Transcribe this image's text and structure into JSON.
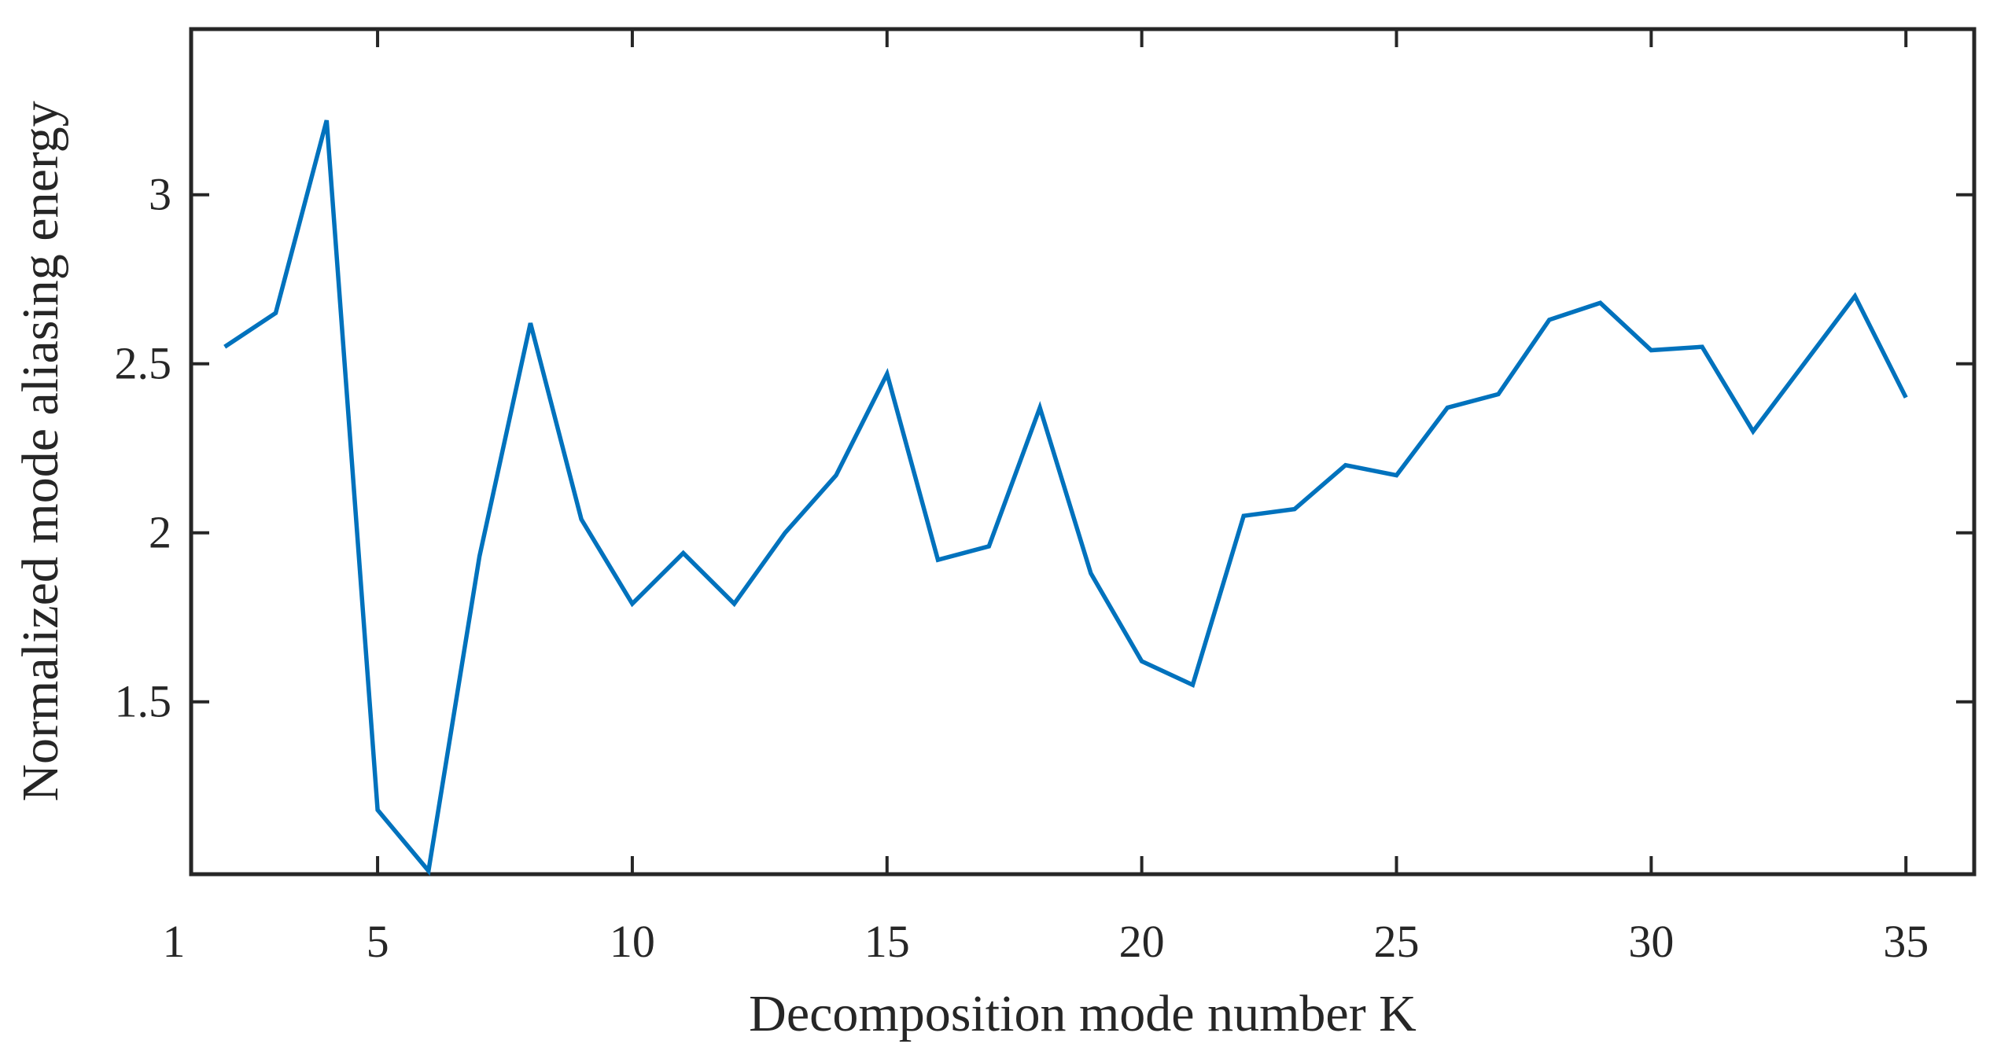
{
  "figure": {
    "background_color": "#ffffff",
    "title": ""
  },
  "chart_data": {
    "type": "line",
    "title": "",
    "xlabel": "Decomposition mode number K",
    "ylabel": "Normalized mode aliasing energy",
    "legend": "none",
    "grid": false,
    "box": true,
    "x": [
      2,
      3,
      4,
      5,
      6,
      7,
      8,
      9,
      10,
      11,
      12,
      13,
      14,
      15,
      16,
      17,
      18,
      19,
      20,
      21,
      22,
      23,
      24,
      25,
      26,
      27,
      28,
      29,
      30,
      31,
      32,
      33,
      34,
      35
    ],
    "y": [
      2.55,
      2.65,
      3.22,
      1.18,
      1.0,
      1.93,
      2.62,
      2.04,
      1.79,
      1.94,
      1.79,
      2.0,
      2.17,
      2.47,
      1.92,
      1.96,
      2.37,
      1.88,
      1.62,
      1.55,
      2.05,
      2.07,
      2.2,
      2.17,
      2.37,
      2.41,
      2.63,
      2.68,
      2.54,
      2.55,
      2.3,
      2.5,
      2.7,
      2.4
    ],
    "xlim": [
      1.34,
      36.34
    ],
    "ylim": [
      0.99,
      3.49
    ],
    "xticks": [
      1,
      5,
      10,
      15,
      20,
      25,
      30,
      35
    ],
    "xtick_labels": [
      "1",
      "5",
      "10",
      "15",
      "20",
      "25",
      "30",
      "35"
    ],
    "yticks": [
      1.5,
      2,
      2.5,
      3
    ],
    "ytick_labels": [
      "1.5",
      "2",
      "2.5",
      "3"
    ],
    "line_color": "#0072BD",
    "axis_color": "#262626",
    "text_color": "#262626"
  }
}
